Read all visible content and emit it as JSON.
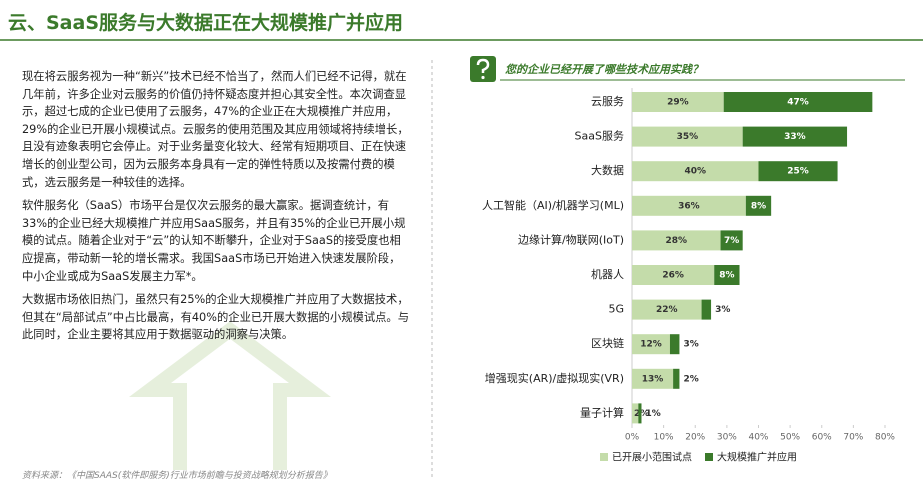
{
  "header": {
    "title": "云、SaaS服务与大数据正在大规模推广并应用"
  },
  "paragraphs": [
    "现在将云服务视为一种“新兴”技术已经不恰当了，然而人们已经不记得，就在几年前，许多企业对云服务的价值仍持怀疑态度并担心其安全性。本次调查显示，超过七成的企业已使用了云服务，47%的企业正在大规模推广并应用，29%的企业已开展小规模试点。云服务的使用范围及其应用领域将持续增长，且没有迹象表明它会停止。对于业务量变化较大、经常有短期项目、正在快速增长的创业型公司，因为云服务本身具有一定的弹性特质以及按需付费的模式，选云服务是一种较佳的选择。",
    "软件服务化（SaaS）市场平台是仅次云服务的最大赢家。据调查统计，有33%的企业已经大规模推广并应用SaaS服务，并且有35%的企业已开展小规模的试点。随着企业对于“云”的认知不断攀升，企业对于SaaS的接受度也相应提高，带动新一轮的增长需求。我国SaaS市场已开始进入快速发展阶段，中小企业或成为SaaS发展主力军*。",
    "大数据市场依旧热门，虽然只有25%的企业大规模推广并应用了大数据技术，但其在“局部试点”中占比最高，有40%的企业已开展大数据的小规模试点。与此同时，企业主要将其应用于数据驱动的洞察与决策。"
  ],
  "source": "资料来源：《中国SAAS(软件即服务)行业市场前瞻与投资战略规划分析报告》",
  "chart_data": {
    "type": "stacked-bar-horizontal",
    "title": "您的企业已经开展了哪些技术应用实践？",
    "categories": [
      "云服务",
      "SaaS服务",
      "大数据",
      "人工智能（AI)/机器学习(ML)",
      "边缘计算/物联网(IoT)",
      "机器人",
      "5G",
      "区块链",
      "增强现实(AR)/虚拟现实(VR)",
      "量子计算"
    ],
    "series": [
      {
        "name": "已开展小范围试点",
        "color": "#c4dcaa",
        "values": [
          29,
          35,
          40,
          36,
          28,
          26,
          22,
          12,
          13,
          2
        ],
        "value_labels": [
          "29%",
          "35%",
          "40%",
          "36%",
          "28%",
          "26%",
          "22%",
          "12%",
          "13%",
          "2%"
        ]
      },
      {
        "name": "大规模推广并应用",
        "color": "#3b7a2b",
        "values": [
          47,
          33,
          25,
          8,
          7,
          8,
          3,
          3,
          2,
          1
        ],
        "value_labels": [
          "47%",
          "33%",
          "25%",
          "8%",
          "7%",
          "8%",
          "3%",
          "3%",
          "2%",
          "1%"
        ]
      }
    ],
    "xlim": [
      0,
      80
    ],
    "xticks": [
      {
        "value": 0,
        "label": "0%"
      },
      {
        "value": 10,
        "label": "10%"
      },
      {
        "value": 20,
        "label": "20%"
      },
      {
        "value": 30,
        "label": "30%"
      },
      {
        "value": 40,
        "label": "40%"
      },
      {
        "value": 50,
        "label": "50%"
      },
      {
        "value": 60,
        "label": "60%"
      },
      {
        "value": 70,
        "label": "70%"
      },
      {
        "value": 80,
        "label": "80%"
      }
    ],
    "grid": false,
    "legend": "bottom"
  }
}
